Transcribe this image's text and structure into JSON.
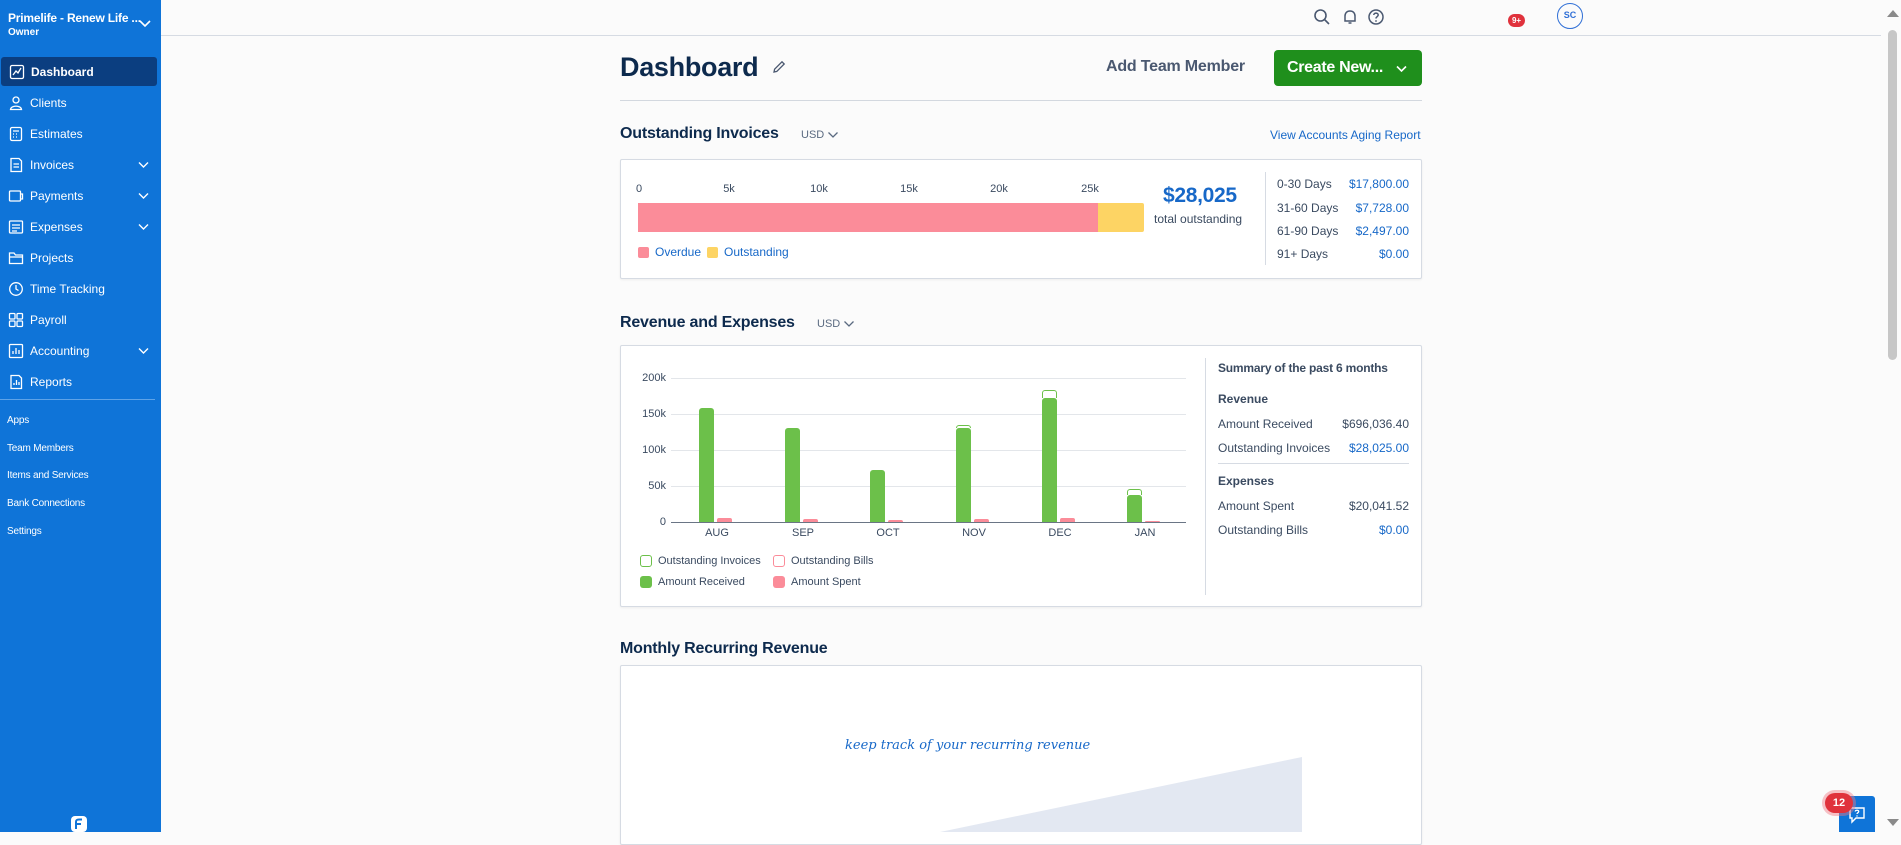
{
  "org": {
    "name": "Primelife - Renew Life ...",
    "role": "Owner"
  },
  "sidebar": {
    "items": [
      {
        "label": "Dashboard",
        "icon": "chart-trend-icon"
      },
      {
        "label": "Clients",
        "icon": "person-icon"
      },
      {
        "label": "Estimates",
        "icon": "calculator-icon"
      },
      {
        "label": "Invoices",
        "icon": "invoice-icon"
      },
      {
        "label": "Payments",
        "icon": "card-icon"
      },
      {
        "label": "Expenses",
        "icon": "receipt-icon"
      },
      {
        "label": "Projects",
        "icon": "folder-icon"
      },
      {
        "label": "Time Tracking",
        "icon": "clock-icon"
      },
      {
        "label": "Payroll",
        "icon": "people-icon"
      },
      {
        "label": "Accounting",
        "icon": "ledger-icon"
      },
      {
        "label": "Reports",
        "icon": "report-icon"
      }
    ],
    "secondary": [
      "Apps",
      "Team Members",
      "Items and Services",
      "Bank Connections",
      "Settings"
    ]
  },
  "topbar": {
    "notification_badge": "9+",
    "avatar_initials": "SC"
  },
  "header": {
    "title": "Dashboard",
    "add_team_member": "Add Team Member",
    "create_new": "Create New..."
  },
  "outstanding": {
    "title": "Outstanding Invoices",
    "currency": "USD",
    "link": "View Accounts Aging Report",
    "ticks": [
      "0",
      "5k",
      "10k",
      "15k",
      "20k",
      "25k"
    ],
    "overdue": 25500,
    "outstanding": 2525,
    "total": "$28,025",
    "total_label": "total outstanding",
    "legend": {
      "overdue": "Overdue",
      "outstanding": "Outstanding"
    },
    "colors": {
      "overdue": "#fb8c99",
      "outstanding": "#fdd464"
    },
    "aging": [
      {
        "label": "0-30 Days",
        "value": "$17,800.00"
      },
      {
        "label": "31-60 Days",
        "value": "$7,728.00"
      },
      {
        "label": "61-90 Days",
        "value": "$2,497.00"
      },
      {
        "label": "91+ Days",
        "value": "$0.00"
      }
    ]
  },
  "revenue": {
    "title": "Revenue and Expenses",
    "currency": "USD",
    "legend": {
      "outstanding_invoices": "Outstanding Invoices",
      "outstanding_bills": "Outstanding Bills",
      "amount_received": "Amount Received",
      "amount_spent": "Amount Spent"
    },
    "summary": {
      "title": "Summary of the past 6 months",
      "revenue_head": "Revenue",
      "amount_received_label": "Amount Received",
      "amount_received": "$696,036.40",
      "outstanding_invoices_label": "Outstanding Invoices",
      "outstanding_invoices": "$28,025.00",
      "expenses_head": "Expenses",
      "amount_spent_label": "Amount Spent",
      "amount_spent": "$20,041.52",
      "outstanding_bills_label": "Outstanding Bills",
      "outstanding_bills": "$0.00"
    }
  },
  "chart_data": {
    "type": "bar",
    "categories": [
      "AUG",
      "SEP",
      "OCT",
      "NOV",
      "DEC",
      "JAN"
    ],
    "yticks": [
      "200k",
      "150k",
      "100k",
      "50k",
      "0"
    ],
    "ylim": [
      0,
      200000
    ],
    "series": [
      {
        "name": "Amount Received",
        "values": [
          158000,
          130000,
          72000,
          130000,
          172000,
          38000
        ],
        "color": "#6cc04a"
      },
      {
        "name": "Outstanding Invoices",
        "values": [
          0,
          0,
          0,
          5000,
          12000,
          8000
        ],
        "color": "#6cc04a"
      },
      {
        "name": "Amount Spent",
        "values": [
          5000,
          4000,
          2500,
          4000,
          5500,
          2000
        ],
        "color": "#fb8c99"
      },
      {
        "name": "Outstanding Bills",
        "values": [
          0,
          0,
          0,
          0,
          0,
          0
        ],
        "color": "#fb8c99"
      }
    ]
  },
  "mrr": {
    "title": "Monthly Recurring Revenue",
    "note": "keep track of your recurring revenue"
  },
  "help": {
    "badge": "12"
  }
}
